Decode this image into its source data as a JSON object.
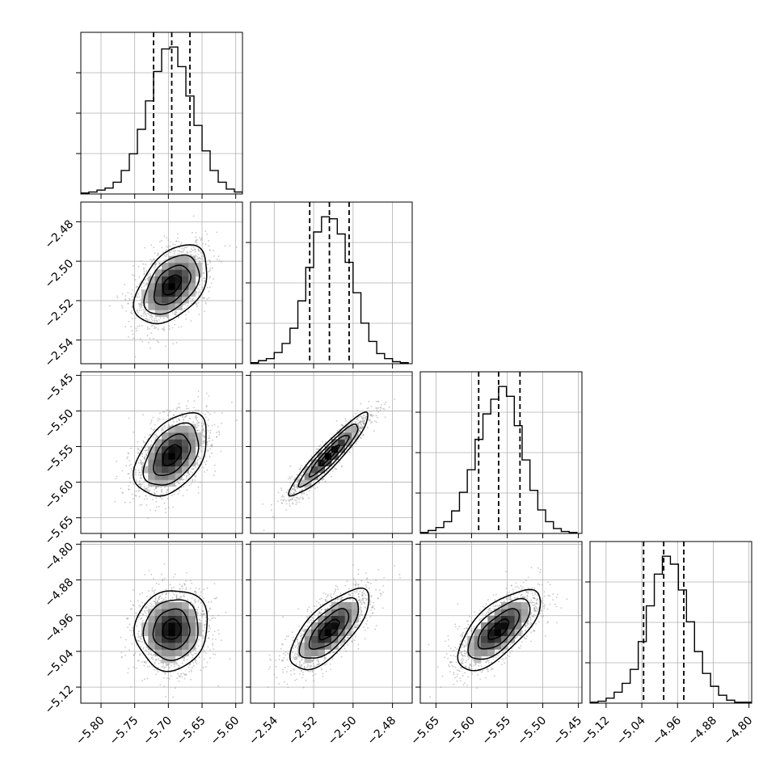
{
  "chart_data": {
    "type": "corner",
    "title": "",
    "parameters": [
      {
        "xlim": [
          -5.83,
          -5.59
        ],
        "ylim": [
          -2.552,
          -2.47
        ],
        "ticks": [
          -5.8,
          -5.75,
          -5.7,
          -5.65,
          -5.6
        ],
        "tick_labels": [
          "−5.80",
          "−5.75",
          "−5.70",
          "−5.65",
          "−5.60"
        ],
        "quantiles": [
          -5.722,
          -5.695,
          -5.668
        ]
      },
      {
        "xlim": [
          -2.552,
          -2.47
        ],
        "ylim": [
          -2.552,
          -2.47
        ],
        "ticks": [
          -2.54,
          -2.52,
          -2.5,
          -2.48
        ],
        "tick_labels": [
          "−2.54",
          "−2.52",
          "−2.50",
          "−2.48"
        ],
        "quantiles": [
          -2.522,
          -2.512,
          -2.502
        ]
      },
      {
        "xlim": [
          -5.672,
          -5.445
        ],
        "ylim": [
          -5.672,
          -5.445
        ],
        "ticks": [
          -5.65,
          -5.6,
          -5.55,
          -5.5,
          -5.45
        ],
        "tick_labels": [
          "−5.65",
          "−5.60",
          "−5.55",
          "−5.50",
          "−5.45"
        ],
        "quantiles": [
          -5.59,
          -5.562,
          -5.532
        ]
      },
      {
        "xlim": [
          -5.156,
          -4.794
        ],
        "ylim": [
          -5.156,
          -4.794
        ],
        "ticks": [
          -5.12,
          -5.04,
          -4.96,
          -4.88,
          -4.8
        ],
        "tick_labels": [
          "−5.12",
          "−5.04",
          "−4.96",
          "−4.88",
          "−4.80"
        ],
        "quantiles": [
          -5.036,
          -4.991,
          -4.946
        ]
      }
    ],
    "y_axis_ticks": [
      {
        "row": 1,
        "ticks": [
          -2.48,
          -2.5,
          -2.52,
          -2.54
        ],
        "tick_labels": [
          "−2.48",
          "−2.50",
          "−2.52",
          "−2.54"
        ]
      },
      {
        "row": 2,
        "ticks": [
          -5.45,
          -5.5,
          -5.55,
          -5.6,
          -5.65
        ],
        "tick_labels": [
          "−5.45",
          "−5.50",
          "−5.55",
          "−5.60",
          "−5.65"
        ]
      },
      {
        "row": 3,
        "ticks": [
          -4.8,
          -4.88,
          -4.96,
          -5.04,
          -5.12
        ],
        "tick_labels": [
          "−4.80",
          "−4.88",
          "−4.96",
          "−5.04",
          "−5.12"
        ]
      }
    ],
    "histograms": [
      {
        "param": 0,
        "bin_edges": [
          -5.83,
          -5.818,
          -5.806,
          -5.794,
          -5.782,
          -5.77,
          -5.758,
          -5.746,
          -5.734,
          -5.722,
          -5.71,
          -5.698,
          -5.686,
          -5.674,
          -5.662,
          -5.65,
          -5.638,
          -5.626,
          -5.614,
          -5.602,
          -5.59
        ],
        "counts": [
          1,
          2,
          4,
          6,
          12,
          24,
          41,
          66,
          95,
          125,
          148,
          150,
          130,
          100,
          70,
          44,
          24,
          12,
          5,
          2
        ]
      },
      {
        "param": 1,
        "bin_edges": [
          -2.552,
          -2.548,
          -2.544,
          -2.54,
          -2.536,
          -2.532,
          -2.528,
          -2.524,
          -2.52,
          -2.516,
          -2.512,
          -2.508,
          -2.504,
          -2.5,
          -2.496,
          -2.492,
          -2.488,
          -2.484,
          -2.48,
          -2.476,
          -2.472
        ],
        "counts": [
          1,
          3,
          5,
          11,
          20,
          35,
          62,
          95,
          130,
          145,
          143,
          128,
          100,
          70,
          40,
          22,
          10,
          5,
          2,
          1
        ]
      },
      {
        "param": 2,
        "bin_edges": [
          -5.672,
          -5.661,
          -5.65,
          -5.639,
          -5.628,
          -5.617,
          -5.606,
          -5.595,
          -5.584,
          -5.573,
          -5.562,
          -5.551,
          -5.54,
          -5.529,
          -5.518,
          -5.507,
          -5.496,
          -5.485,
          -5.474,
          -5.463,
          -5.452
        ],
        "counts": [
          1,
          3,
          6,
          12,
          23,
          42,
          65,
          96,
          122,
          137,
          150,
          140,
          110,
          75,
          44,
          24,
          12,
          5,
          2,
          1
        ]
      },
      {
        "param": 3,
        "bin_edges": [
          -5.156,
          -5.138,
          -5.12,
          -5.102,
          -5.084,
          -5.066,
          -5.048,
          -5.03,
          -5.012,
          -4.994,
          -4.976,
          -4.958,
          -4.94,
          -4.922,
          -4.904,
          -4.886,
          -4.868,
          -4.85,
          -4.832,
          -4.814,
          -4.796
        ],
        "counts": [
          1,
          2,
          5,
          11,
          20,
          34,
          62,
          98,
          130,
          148,
          140,
          114,
          82,
          52,
          30,
          17,
          8,
          3,
          1,
          1
        ]
      }
    ],
    "correlations": [
      {
        "row": 1,
        "col": 0,
        "rho": 0.45
      },
      {
        "row": 2,
        "col": 0,
        "rho": 0.45
      },
      {
        "row": 2,
        "col": 1,
        "rho": 0.93
      },
      {
        "row": 3,
        "col": 0,
        "rho": 0.08
      },
      {
        "row": 3,
        "col": 1,
        "rho": 0.7
      },
      {
        "row": 3,
        "col": 2,
        "rho": 0.68
      }
    ],
    "contour_levels_sigma": [
      0.5,
      1.0,
      1.5,
      2.0
    ],
    "grid": true,
    "colors": {
      "axes": "#000000",
      "grid": "#b0b0b0",
      "hist": "#000000",
      "density_dark": "#000000",
      "density_light": "#f0f0f0",
      "scatter": "#9a9a9a"
    }
  }
}
